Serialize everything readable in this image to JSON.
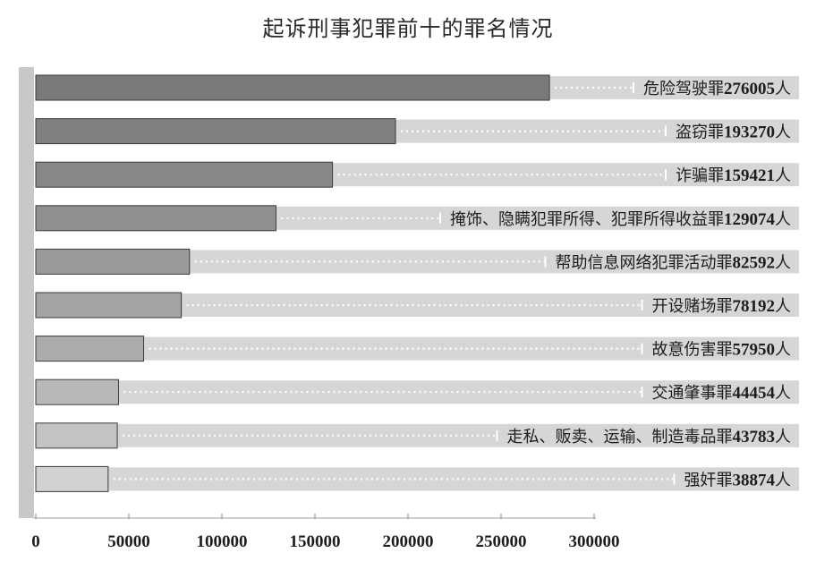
{
  "chart_data": {
    "type": "bar",
    "orientation": "horizontal",
    "title": "起诉刑事犯罪前十的罪名情况",
    "xlim": [
      0,
      300000
    ],
    "xticks": [
      "0",
      "50000",
      "100000",
      "150000",
      "200000",
      "250000",
      "300000"
    ],
    "grid": false,
    "legend": "none",
    "categories": [
      "危险驾驶罪",
      "盗窃罪",
      "诈骗罪",
      "掩饰、隐瞒犯罪所得、犯罪所得收益罪",
      "帮助信息网络犯罪活动罪",
      "开设赌场罪",
      "故意伤害罪",
      "交通肇事罪",
      "走私、贩卖、运输、制造毒品罪",
      "强奸罪"
    ],
    "values": [
      276005,
      193270,
      159421,
      129074,
      82592,
      78192,
      57950,
      44454,
      43783,
      38874
    ],
    "unit": "人",
    "bar_colors": [
      "#7a7a7a",
      "#808080",
      "#878787",
      "#8f8f8f",
      "#9a9a9a",
      "#a3a3a3",
      "#ababab",
      "#b8b8b8",
      "#c3c3c3",
      "#d2d2d2"
    ],
    "track_color": "#d6d6d6",
    "axis_color": "#c8c8c8"
  }
}
